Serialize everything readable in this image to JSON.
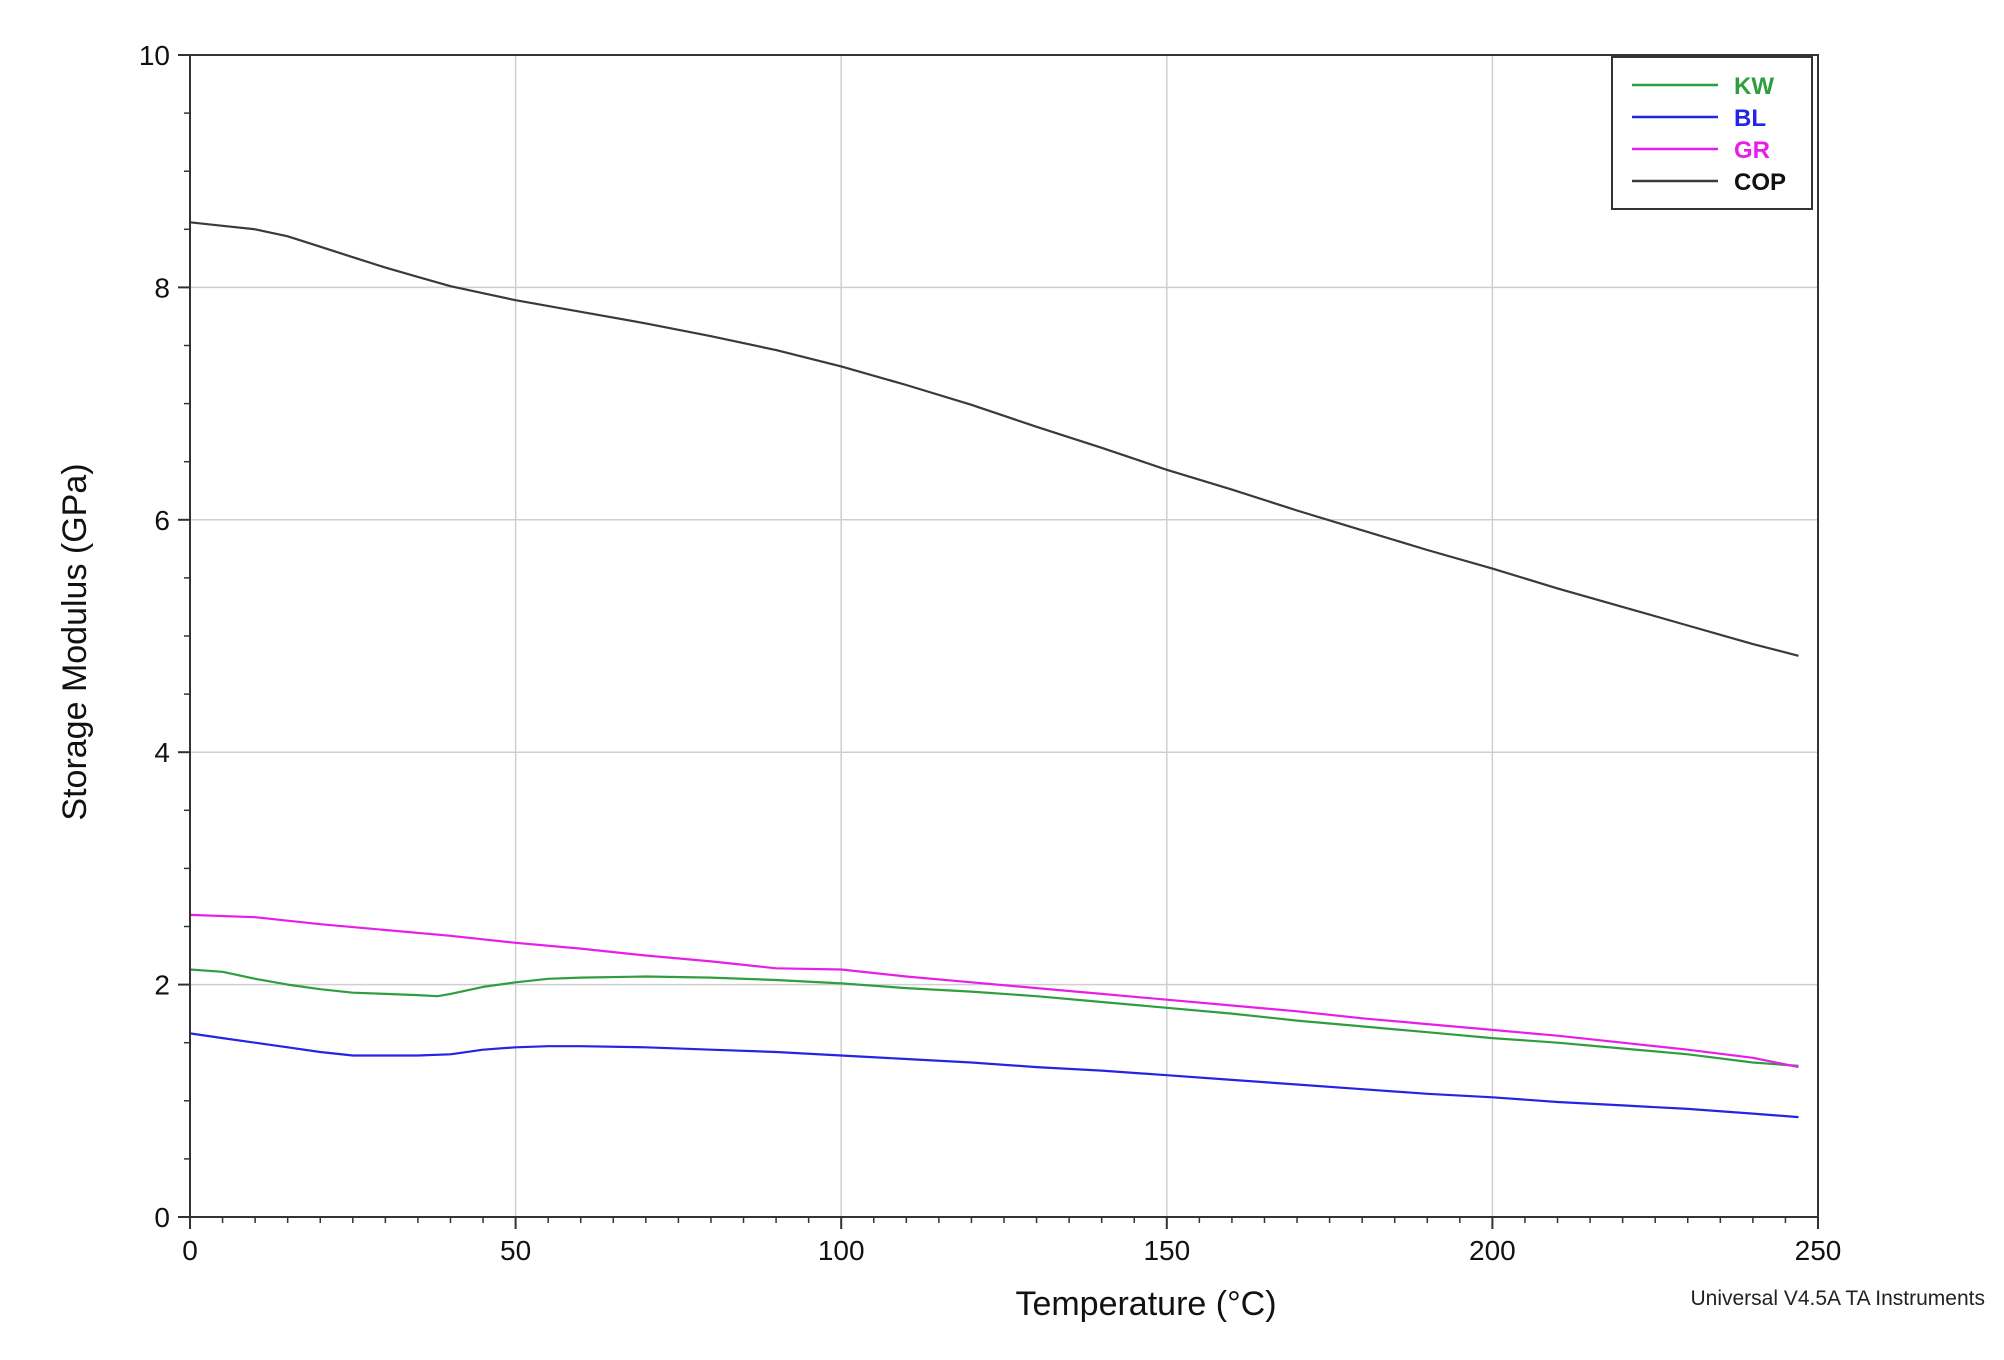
{
  "chart_data": {
    "type": "line",
    "title": "",
    "xlabel": "Temperature (°C)",
    "ylabel": "Storage Modulus (GPa)",
    "xlim": [
      0,
      250
    ],
    "ylim": [
      0,
      10
    ],
    "x_ticks": [
      0,
      50,
      100,
      150,
      200,
      250
    ],
    "y_ticks": [
      0,
      2,
      4,
      6,
      8,
      10
    ],
    "grid": true,
    "legend_position": "top-right",
    "series": [
      {
        "name": "KW",
        "color": "#2e9e3e",
        "points": [
          [
            0,
            2.13
          ],
          [
            5,
            2.11
          ],
          [
            10,
            2.05
          ],
          [
            15,
            2.0
          ],
          [
            20,
            1.96
          ],
          [
            25,
            1.93
          ],
          [
            30,
            1.92
          ],
          [
            35,
            1.91
          ],
          [
            38,
            1.9
          ],
          [
            40,
            1.92
          ],
          [
            45,
            1.98
          ],
          [
            50,
            2.02
          ],
          [
            55,
            2.05
          ],
          [
            60,
            2.06
          ],
          [
            70,
            2.07
          ],
          [
            80,
            2.06
          ],
          [
            90,
            2.04
          ],
          [
            100,
            2.01
          ],
          [
            110,
            1.97
          ],
          [
            120,
            1.94
          ],
          [
            130,
            1.9
          ],
          [
            140,
            1.85
          ],
          [
            150,
            1.8
          ],
          [
            160,
            1.75
          ],
          [
            170,
            1.69
          ],
          [
            180,
            1.64
          ],
          [
            190,
            1.59
          ],
          [
            200,
            1.54
          ],
          [
            210,
            1.5
          ],
          [
            220,
            1.45
          ],
          [
            230,
            1.4
          ],
          [
            240,
            1.33
          ],
          [
            247,
            1.3
          ]
        ]
      },
      {
        "name": "BL",
        "color": "#2424e6",
        "points": [
          [
            0,
            1.58
          ],
          [
            5,
            1.54
          ],
          [
            10,
            1.5
          ],
          [
            15,
            1.46
          ],
          [
            20,
            1.42
          ],
          [
            25,
            1.39
          ],
          [
            30,
            1.39
          ],
          [
            35,
            1.39
          ],
          [
            40,
            1.4
          ],
          [
            45,
            1.44
          ],
          [
            50,
            1.46
          ],
          [
            55,
            1.47
          ],
          [
            60,
            1.47
          ],
          [
            70,
            1.46
          ],
          [
            80,
            1.44
          ],
          [
            90,
            1.42
          ],
          [
            100,
            1.39
          ],
          [
            110,
            1.36
          ],
          [
            120,
            1.33
          ],
          [
            130,
            1.29
          ],
          [
            140,
            1.26
          ],
          [
            150,
            1.22
          ],
          [
            160,
            1.18
          ],
          [
            170,
            1.14
          ],
          [
            180,
            1.1
          ],
          [
            190,
            1.06
          ],
          [
            200,
            1.03
          ],
          [
            210,
            0.99
          ],
          [
            220,
            0.96
          ],
          [
            230,
            0.93
          ],
          [
            240,
            0.89
          ],
          [
            247,
            0.86
          ]
        ]
      },
      {
        "name": "GR",
        "color": "#e81ee8",
        "points": [
          [
            0,
            2.6
          ],
          [
            10,
            2.58
          ],
          [
            20,
            2.52
          ],
          [
            30,
            2.47
          ],
          [
            40,
            2.42
          ],
          [
            50,
            2.36
          ],
          [
            60,
            2.31
          ],
          [
            70,
            2.25
          ],
          [
            80,
            2.2
          ],
          [
            90,
            2.14
          ],
          [
            100,
            2.13
          ],
          [
            110,
            2.07
          ],
          [
            120,
            2.02
          ],
          [
            130,
            1.97
          ],
          [
            140,
            1.92
          ],
          [
            150,
            1.87
          ],
          [
            160,
            1.82
          ],
          [
            170,
            1.77
          ],
          [
            180,
            1.71
          ],
          [
            190,
            1.66
          ],
          [
            200,
            1.61
          ],
          [
            210,
            1.56
          ],
          [
            220,
            1.5
          ],
          [
            230,
            1.44
          ],
          [
            240,
            1.37
          ],
          [
            247,
            1.29
          ]
        ]
      },
      {
        "name": "COP",
        "color": "#3a3a3a",
        "points": [
          [
            0,
            8.56
          ],
          [
            5,
            8.53
          ],
          [
            10,
            8.5
          ],
          [
            15,
            8.44
          ],
          [
            20,
            8.35
          ],
          [
            25,
            8.26
          ],
          [
            30,
            8.17
          ],
          [
            35,
            8.09
          ],
          [
            40,
            8.01
          ],
          [
            45,
            7.95
          ],
          [
            50,
            7.89
          ],
          [
            60,
            7.79
          ],
          [
            70,
            7.69
          ],
          [
            80,
            7.58
          ],
          [
            90,
            7.46
          ],
          [
            100,
            7.32
          ],
          [
            110,
            7.16
          ],
          [
            120,
            6.99
          ],
          [
            130,
            6.8
          ],
          [
            140,
            6.62
          ],
          [
            150,
            6.43
          ],
          [
            160,
            6.26
          ],
          [
            170,
            6.08
          ],
          [
            180,
            5.91
          ],
          [
            190,
            5.74
          ],
          [
            200,
            5.58
          ],
          [
            210,
            5.41
          ],
          [
            220,
            5.25
          ],
          [
            230,
            5.09
          ],
          [
            240,
            4.93
          ],
          [
            247,
            4.83
          ]
        ]
      }
    ]
  },
  "credit": "Universal V4.5A TA Instruments"
}
